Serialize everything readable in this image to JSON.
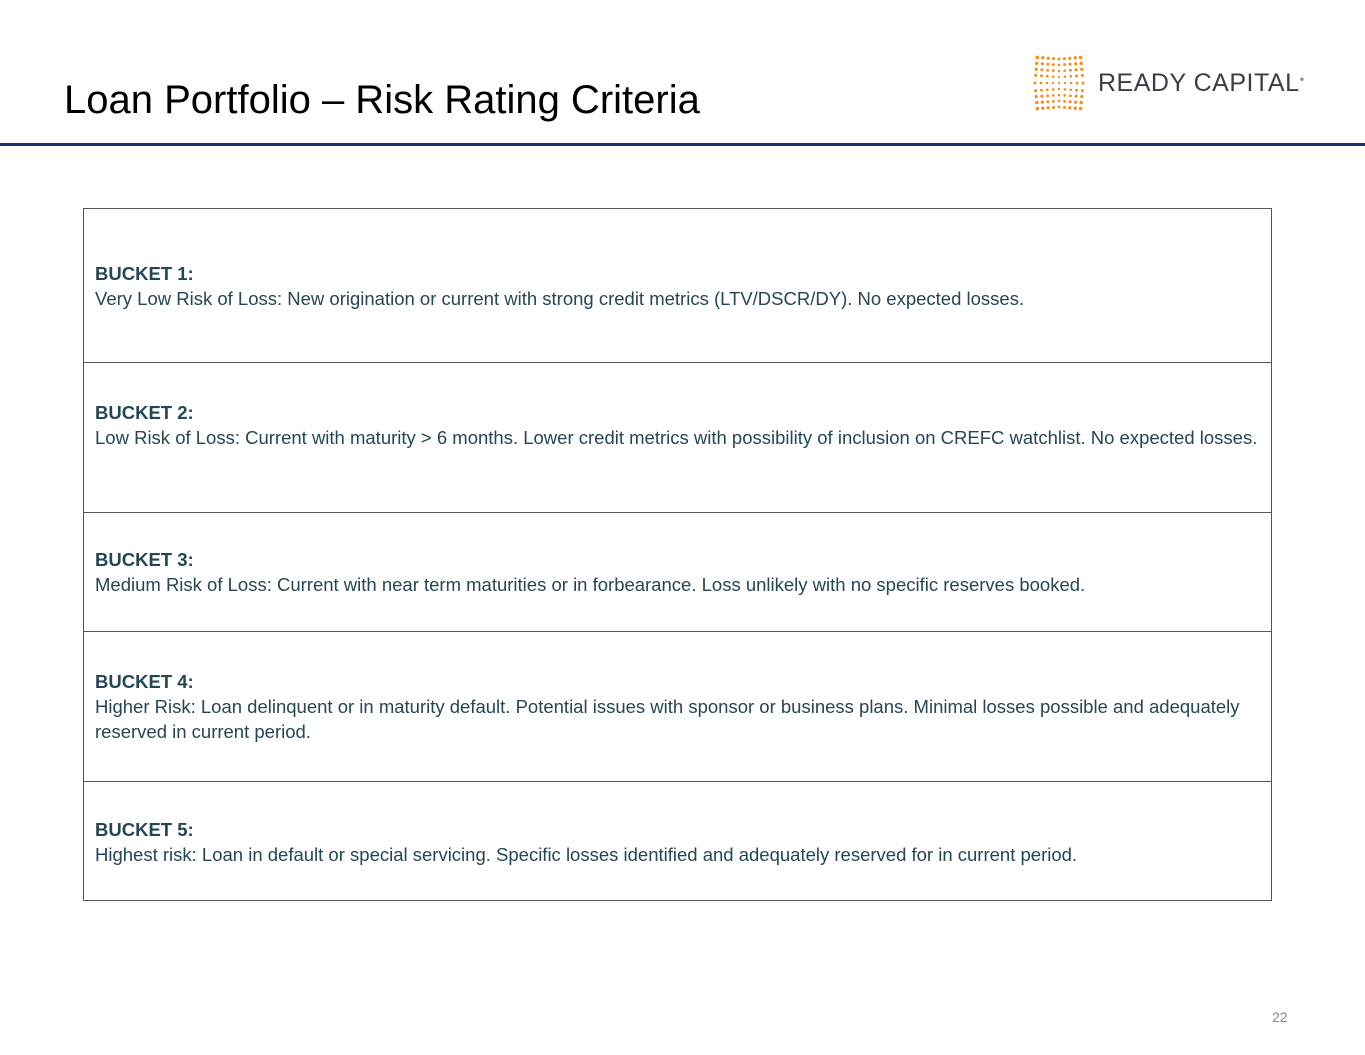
{
  "header": {
    "title": "Loan Portfolio – Risk Rating Criteria",
    "logo_text": "READY CAPITAL",
    "brand_color": "#f0901e",
    "rule_color": "#1b3370"
  },
  "buckets": [
    {
      "label": "BUCKET 1:",
      "text": "Very Low Risk of Loss: New origination or current with strong credit metrics (LTV/DSCR/DY). No expected losses."
    },
    {
      "label": "BUCKET 2:",
      "text": "Low Risk of Loss: Current with maturity > 6 months. Lower credit metrics with possibility of inclusion on CREFC watchlist. No expected losses."
    },
    {
      "label": "BUCKET 3:",
      "text": "Medium Risk of Loss: Current with near term maturities or in forbearance. Loss unlikely with no specific reserves booked."
    },
    {
      "label": "BUCKET 4:",
      "text": "Higher Risk: Loan delinquent or in maturity default. Potential issues with sponsor or business plans. Minimal losses possible and adequately reserved in current period."
    },
    {
      "label": "BUCKET 5:",
      "text": "Highest risk: Loan in default or special servicing. Specific losses identified and adequately reserved for in current period."
    }
  ],
  "footer": {
    "page_number": "22"
  }
}
